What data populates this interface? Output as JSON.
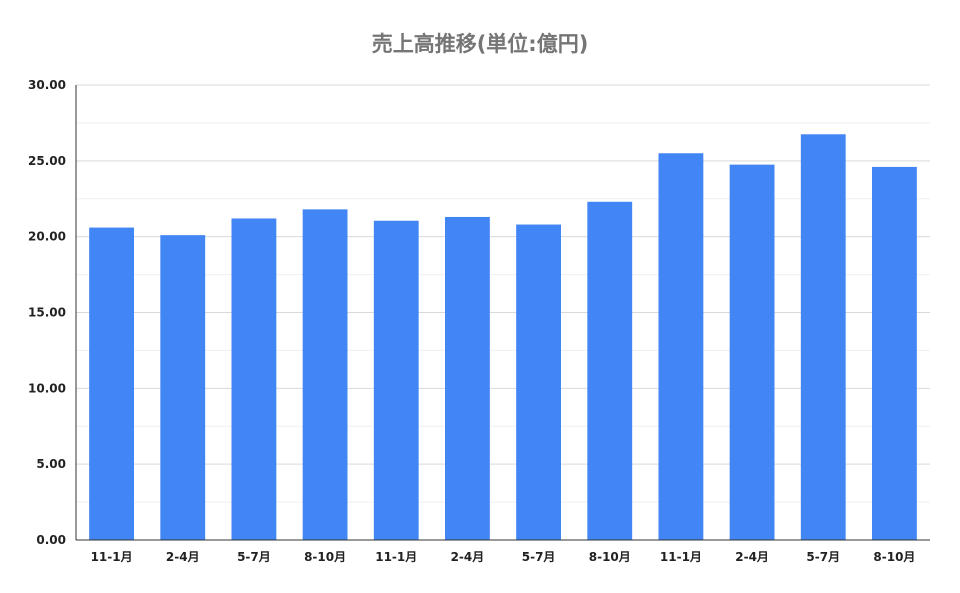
{
  "chart_data": {
    "type": "bar",
    "title": "売上高推移(単位:億円)",
    "categories": [
      "11-1月",
      "2-4月",
      "5-7月",
      "8-10月",
      "11-1月",
      "2-4月",
      "5-7月",
      "8-10月",
      "11-1月",
      "2-4月",
      "5-7月",
      "8-10月"
    ],
    "values": [
      20.6,
      20.1,
      21.2,
      21.8,
      21.05,
      21.3,
      20.8,
      22.3,
      25.5,
      24.75,
      26.75,
      24.6
    ],
    "ylim": [
      0,
      30
    ],
    "yticks": [
      "0.00",
      "5.00",
      "10.00",
      "15.00",
      "20.00",
      "25.00",
      "30.00"
    ],
    "grid": true,
    "bar_color": "#4285f4",
    "legend": "none"
  }
}
